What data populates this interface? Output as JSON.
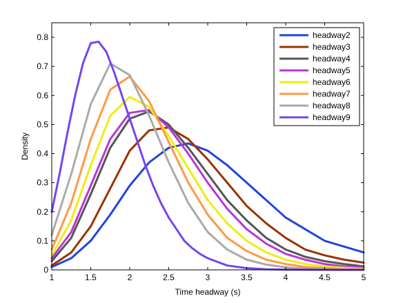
{
  "chart_data": {
    "type": "line",
    "title": "",
    "xlabel": "Time headway (s)",
    "ylabel": "Density",
    "xlim": [
      1,
      5
    ],
    "ylim": [
      0,
      0.85
    ],
    "x_ticks": [
      1,
      1.5,
      2,
      2.5,
      3,
      3.5,
      4,
      4.5,
      5
    ],
    "x_tick_labels": [
      "1",
      "1.5",
      "2",
      "2.5",
      "3",
      "3.5",
      "4",
      "4.5",
      "5"
    ],
    "y_ticks": [
      0,
      0.1,
      0.2,
      0.3,
      0.4,
      0.5,
      0.6,
      0.7,
      0.8
    ],
    "y_tick_labels": [
      "0",
      "0.1",
      "0.2",
      "0.3",
      "0.4",
      "0.5",
      "0.6",
      "0.7",
      "0.8"
    ],
    "grid": false,
    "legend_position": "top-right",
    "series": [
      {
        "name": "headway2",
        "color": "#2244dd",
        "x": [
          1.0,
          1.25,
          1.5,
          1.75,
          2.0,
          2.25,
          2.5,
          2.75,
          3.0,
          3.25,
          3.5,
          3.75,
          4.0,
          4.25,
          4.5,
          4.75,
          5.0
        ],
        "y": [
          0.01,
          0.04,
          0.1,
          0.19,
          0.29,
          0.37,
          0.42,
          0.435,
          0.41,
          0.36,
          0.3,
          0.24,
          0.18,
          0.14,
          0.1,
          0.08,
          0.06
        ]
      },
      {
        "name": "headway3",
        "color": "#993300",
        "x": [
          1.0,
          1.25,
          1.5,
          1.75,
          2.0,
          2.25,
          2.5,
          2.75,
          3.0,
          3.25,
          3.5,
          3.75,
          4.0,
          4.25,
          4.5,
          4.75,
          5.0
        ],
        "y": [
          0.015,
          0.06,
          0.15,
          0.28,
          0.41,
          0.48,
          0.49,
          0.45,
          0.38,
          0.3,
          0.22,
          0.16,
          0.11,
          0.07,
          0.05,
          0.035,
          0.025
        ]
      },
      {
        "name": "headway4",
        "color": "#555555",
        "x": [
          1.0,
          1.25,
          1.5,
          1.75,
          2.0,
          2.25,
          2.5,
          2.75,
          3.0,
          3.25,
          3.5,
          3.75,
          4.0,
          4.25,
          4.5,
          4.75,
          5.0
        ],
        "y": [
          0.03,
          0.11,
          0.26,
          0.42,
          0.52,
          0.545,
          0.5,
          0.42,
          0.33,
          0.24,
          0.17,
          0.11,
          0.07,
          0.045,
          0.03,
          0.02,
          0.012
        ]
      },
      {
        "name": "headway5",
        "color": "#bb33dd",
        "x": [
          1.0,
          1.25,
          1.5,
          1.75,
          2.0,
          2.25,
          2.5,
          2.75,
          3.0,
          3.25,
          3.5,
          3.75,
          4.0,
          4.25,
          4.5,
          4.75,
          5.0
        ],
        "y": [
          0.04,
          0.13,
          0.29,
          0.45,
          0.54,
          0.55,
          0.49,
          0.4,
          0.3,
          0.21,
          0.14,
          0.09,
          0.055,
          0.035,
          0.02,
          0.012,
          0.008
        ]
      },
      {
        "name": "headway6",
        "color": "#eeee11",
        "x": [
          1.0,
          1.25,
          1.5,
          1.75,
          2.0,
          2.25,
          2.5,
          2.75,
          3.0,
          3.25,
          3.5,
          3.75,
          4.0,
          4.25,
          4.5,
          4.75,
          5.0
        ],
        "y": [
          0.05,
          0.17,
          0.36,
          0.53,
          0.595,
          0.56,
          0.46,
          0.35,
          0.24,
          0.16,
          0.1,
          0.06,
          0.035,
          0.02,
          0.012,
          0.007,
          0.004
        ]
      },
      {
        "name": "headway7",
        "color": "#ff9944",
        "x": [
          1.0,
          1.25,
          1.5,
          1.75,
          2.0,
          2.25,
          2.5,
          2.75,
          3.0,
          3.25,
          3.5,
          3.75,
          4.0,
          4.25,
          4.5,
          4.75,
          5.0
        ],
        "y": [
          0.07,
          0.23,
          0.45,
          0.62,
          0.665,
          0.58,
          0.44,
          0.3,
          0.19,
          0.11,
          0.065,
          0.035,
          0.02,
          0.01,
          0.006,
          0.003,
          0.002
        ]
      },
      {
        "name": "headway8",
        "color": "#aaaaaa",
        "x": [
          1.0,
          1.25,
          1.5,
          1.75,
          2.0,
          2.25,
          2.5,
          2.75,
          3.0,
          3.25,
          3.5,
          3.75,
          4.0,
          4.25,
          4.5,
          4.75,
          5.0
        ],
        "y": [
          0.12,
          0.33,
          0.57,
          0.71,
          0.67,
          0.53,
          0.37,
          0.23,
          0.13,
          0.07,
          0.035,
          0.018,
          0.009,
          0.004,
          0.002,
          0.001,
          0.0005
        ]
      },
      {
        "name": "headway9",
        "color": "#7744ee",
        "x": [
          1.0,
          1.1,
          1.2,
          1.3,
          1.4,
          1.5,
          1.6,
          1.7,
          1.8,
          1.9,
          2.0,
          2.1,
          2.2,
          2.3,
          2.4,
          2.5,
          2.6,
          2.7,
          2.8,
          2.9,
          3.0,
          3.25,
          3.5,
          3.75,
          4.0,
          4.25,
          4.5,
          4.75,
          5.0
        ],
        "y": [
          0.2,
          0.33,
          0.47,
          0.6,
          0.71,
          0.78,
          0.785,
          0.75,
          0.68,
          0.6,
          0.52,
          0.44,
          0.36,
          0.29,
          0.23,
          0.18,
          0.14,
          0.1,
          0.075,
          0.055,
          0.04,
          0.015,
          0.006,
          0.002,
          0.001,
          0.0005,
          0.0002,
          0.0001,
          0.0
        ]
      }
    ]
  }
}
